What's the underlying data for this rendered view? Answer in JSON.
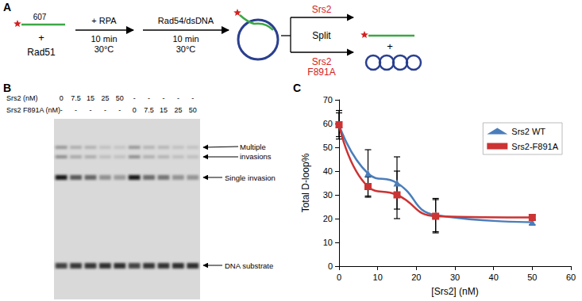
{
  "panel_a": {
    "label": "A",
    "probe_length": "607",
    "plus_1": "+",
    "protein": "Rad51",
    "step1": {
      "above": "+ RPA",
      "below": [
        "10 min",
        "30°C"
      ]
    },
    "step2": {
      "above": "Rad54/dsDNA",
      "below": [
        "10 min",
        "30°C"
      ]
    },
    "split": {
      "top": "Srs2",
      "middle": "Split",
      "bottom": [
        "Srs2",
        "F891A"
      ]
    },
    "plus_2": "+"
  },
  "panel_b": {
    "label": "B",
    "rows": [
      {
        "label": "Srs2 (nM)",
        "values": [
          "0",
          "7.5",
          "15",
          "25",
          "50",
          "-",
          "-",
          "-",
          "-",
          "-"
        ]
      },
      {
        "label": "Srs2 F891A (nM)",
        "values": [
          "-",
          "-",
          "-",
          "-",
          "-",
          "0",
          "7.5",
          "15",
          "25",
          "50"
        ]
      }
    ],
    "band_labels": {
      "multiple": [
        "Multiple",
        "invasions"
      ],
      "single": "Single invasion",
      "substrate": "DNA substrate"
    }
  },
  "panel_c": {
    "label": "C"
  },
  "chart_data": {
    "type": "line",
    "x_label": "[Srs2] (nM)",
    "y_label": "Total D-loop%",
    "x": [
      0,
      7.5,
      15,
      25,
      50
    ],
    "xlim": [
      0,
      60
    ],
    "xticks": [
      0,
      10,
      20,
      30,
      40,
      50,
      60
    ],
    "ylim": [
      0,
      70
    ],
    "yticks": [
      0,
      10,
      20,
      30,
      40,
      50,
      60,
      70
    ],
    "grid": false,
    "legend": "upper right",
    "series": [
      {
        "name": "Srs2 WT",
        "color": "#4a7ebb",
        "marker": "triangle",
        "line_style": "solid",
        "values": [
          59.5,
          39,
          35,
          21.5,
          18.5
        ],
        "errors": [
          6,
          10,
          11,
          7,
          1
        ]
      },
      {
        "name": "Srs2-F891A",
        "color": "#cc3333",
        "marker": "square",
        "line_style": "solid",
        "values": [
          59.5,
          33.5,
          30,
          21,
          20.5
        ],
        "errors": [
          5,
          4,
          10,
          7,
          1
        ]
      }
    ]
  }
}
